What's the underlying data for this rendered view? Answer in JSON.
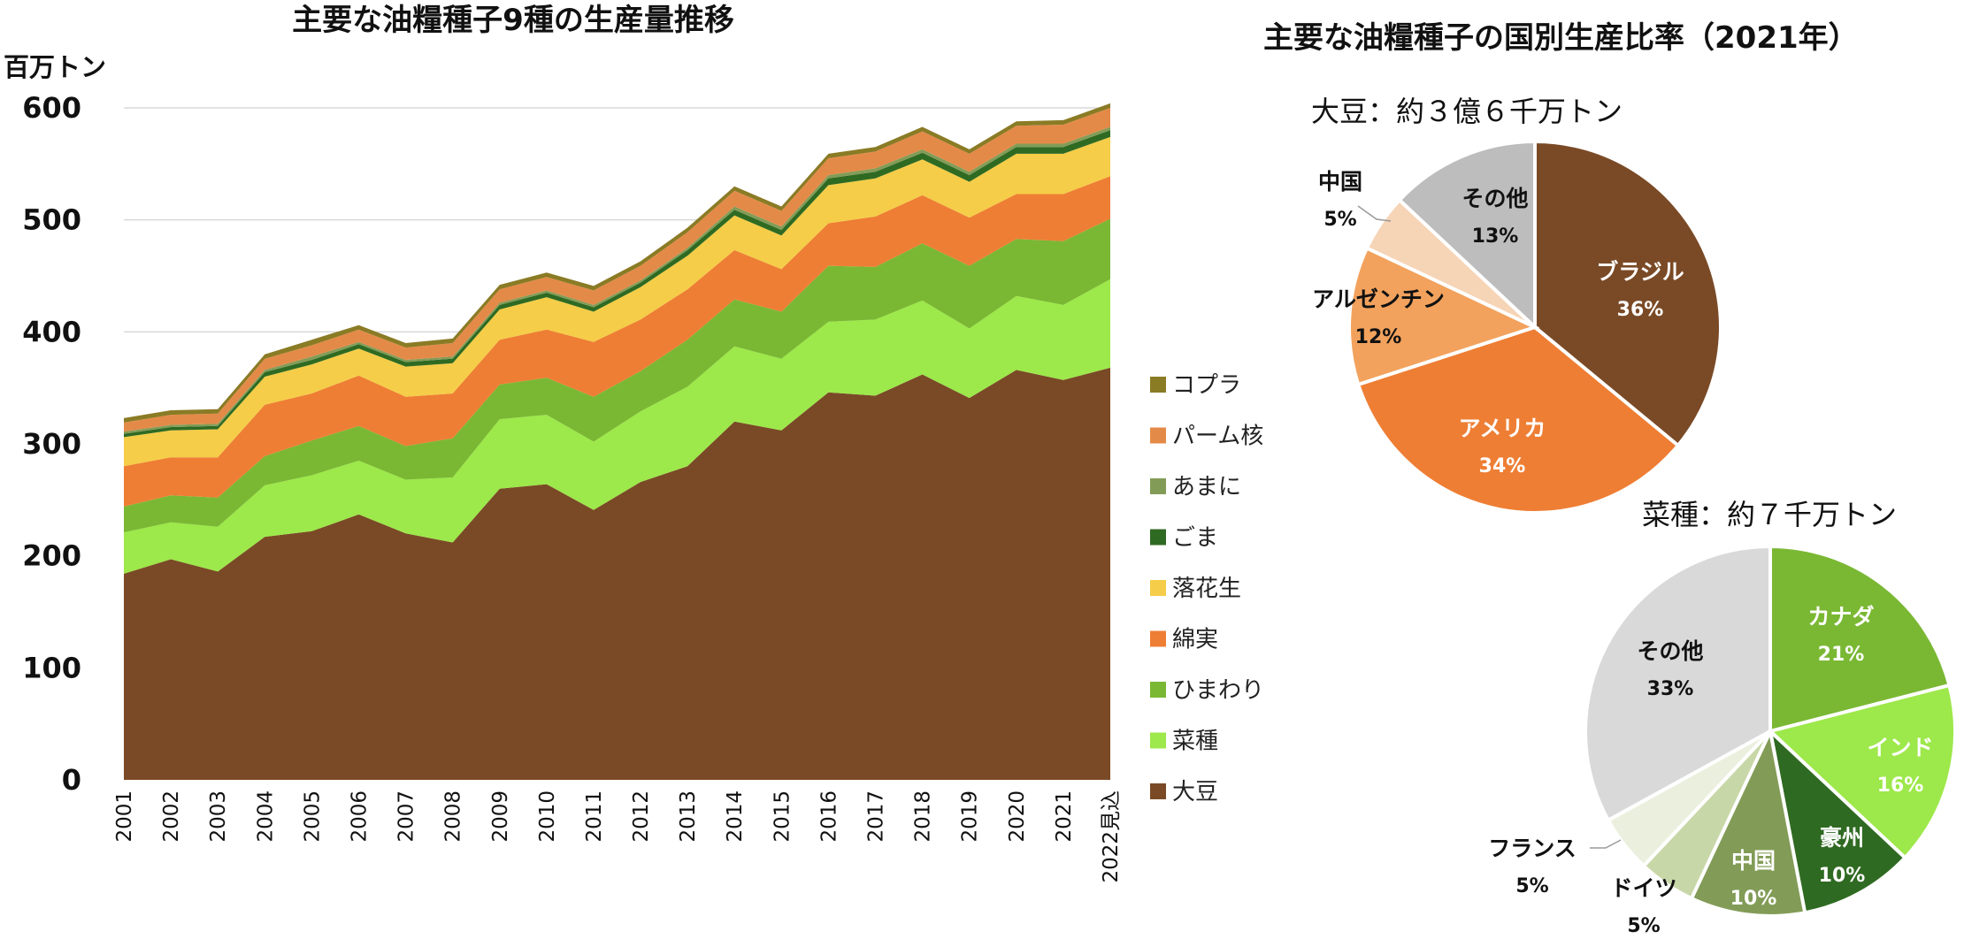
{
  "chart_data": [
    {
      "type": "area",
      "stacked": true,
      "title": "主要な油糧種子9種の生産量推移",
      "ylabel": "百万トン",
      "ylim": [
        0,
        600
      ],
      "yticks": [
        "0",
        "100",
        "200",
        "300",
        "400",
        "500",
        "600"
      ],
      "grid": true,
      "legend": "right",
      "x": [
        "2001",
        "2002",
        "2003",
        "2004",
        "2005",
        "2006",
        "2007",
        "2008",
        "2009",
        "2010",
        "2011",
        "2012",
        "2013",
        "2014",
        "2015",
        "2016",
        "2017",
        "2018",
        "2019",
        "2020",
        "2021",
        "2022見込"
      ],
      "series": [
        {
          "name": "大豆",
          "color": "#7a4a26",
          "values": [
            184,
            197,
            186,
            217,
            222,
            237,
            220,
            212,
            260,
            264,
            241,
            266,
            280,
            320,
            312,
            346,
            343,
            362,
            341,
            366,
            357,
            368
          ]
        },
        {
          "name": "菜種",
          "color": "#9de84a",
          "values": [
            37,
            33,
            40,
            46,
            50,
            48,
            48,
            58,
            62,
            62,
            61,
            63,
            71,
            67,
            64,
            63,
            68,
            66,
            62,
            66,
            67,
            79
          ]
        },
        {
          "name": "ひまわり",
          "color": "#7ab833",
          "values": [
            23,
            24,
            26,
            26,
            31,
            31,
            30,
            35,
            31,
            33,
            40,
            36,
            42,
            42,
            42,
            50,
            47,
            51,
            56,
            51,
            57,
            54
          ]
        },
        {
          "name": "綿実",
          "color": "#ee7e34",
          "values": [
            36,
            34,
            36,
            46,
            42,
            45,
            44,
            40,
            40,
            43,
            49,
            46,
            45,
            44,
            38,
            38,
            45,
            43,
            43,
            40,
            42,
            38
          ]
        },
        {
          "name": "落花生",
          "color": "#f5cd48",
          "values": [
            26,
            24,
            25,
            25,
            26,
            24,
            27,
            27,
            27,
            29,
            27,
            29,
            30,
            31,
            30,
            34,
            34,
            32,
            32,
            36,
            36,
            35
          ]
        },
        {
          "name": "ごま",
          "color": "#2f6a22",
          "values": [
            3,
            3,
            3,
            4,
            4,
            4,
            4,
            4,
            4,
            4,
            4,
            4,
            5,
            5,
            5,
            6,
            6,
            6,
            6,
            6,
            6,
            6
          ]
        },
        {
          "name": "あまに",
          "color": "#829c57",
          "values": [
            2,
            2,
            2,
            2,
            3,
            2,
            2,
            2,
            2,
            2,
            2,
            2,
            2,
            3,
            3,
            3,
            3,
            3,
            3,
            3,
            3,
            3
          ]
        },
        {
          "name": "パーム核",
          "color": "#e48a48",
          "values": [
            8,
            9,
            9,
            10,
            10,
            11,
            11,
            12,
            12,
            12,
            13,
            13,
            14,
            14,
            14,
            15,
            15,
            16,
            16,
            16,
            17,
            17
          ]
        },
        {
          "name": "コプラ",
          "color": "#8a7b25",
          "values": [
            4,
            4,
            4,
            4,
            5,
            4,
            4,
            4,
            4,
            4,
            4,
            4,
            4,
            4,
            4,
            4,
            4,
            4,
            4,
            4,
            4,
            4
          ]
        }
      ]
    },
    {
      "type": "pie",
      "title": "主要な油糧種子の国別生産比率（2021年）",
      "subtitle": "大豆：約３億６千万トン",
      "slices": [
        {
          "label": "ブラジル",
          "pct": "36%",
          "value": 36,
          "color": "#7a4a26"
        },
        {
          "label": "アメリカ",
          "pct": "34%",
          "value": 34,
          "color": "#ee7e34"
        },
        {
          "label": "アルゼンチン",
          "pct": "12%",
          "value": 12,
          "color": "#f2a25d"
        },
        {
          "label": "中国",
          "pct": "5%",
          "value": 5,
          "color": "#f6d4b6"
        },
        {
          "label": "その他",
          "pct": "13%",
          "value": 13,
          "color": "#bdbdbd"
        }
      ]
    },
    {
      "type": "pie",
      "subtitle": "菜種：約７千万トン",
      "slices": [
        {
          "label": "カナダ",
          "pct": "21%",
          "value": 21,
          "color": "#7ab833"
        },
        {
          "label": "インド",
          "pct": "16%",
          "value": 16,
          "color": "#9de84a"
        },
        {
          "label": "豪州",
          "pct": "10%",
          "value": 10,
          "color": "#2f6a22"
        },
        {
          "label": "中国",
          "pct": "10%",
          "value": 10,
          "color": "#829c57"
        },
        {
          "label": "ドイツ",
          "pct": "5%",
          "value": 5,
          "color": "#c8d7a7"
        },
        {
          "label": "フランス",
          "pct": "5%",
          "value": 5,
          "color": "#ebf0de"
        },
        {
          "label": "その他",
          "pct": "33%",
          "value": 33,
          "color": "#d9d9d9"
        }
      ]
    }
  ]
}
